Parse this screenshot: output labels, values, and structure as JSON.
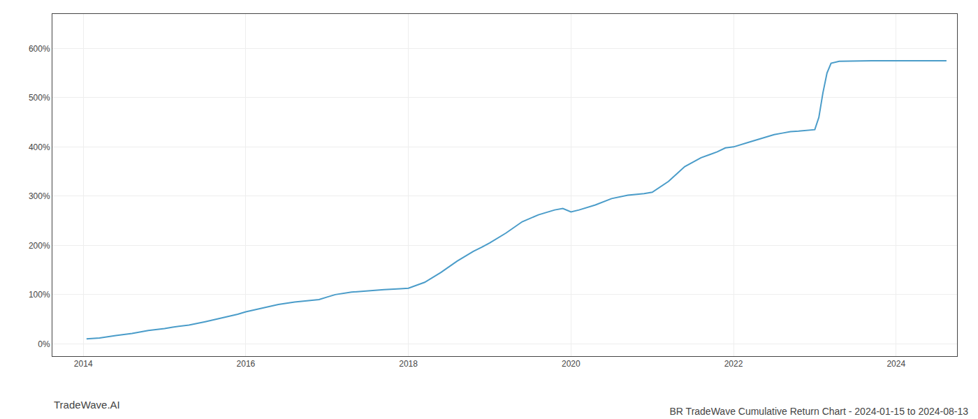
{
  "chart_data": {
    "type": "line",
    "title": "BR TradeWave Cumulative Return Chart - 2024-01-15 to 2024-08-13",
    "annotations": [
      {
        "text": "TradeWave.AI"
      }
    ],
    "color": "#4a9cc9",
    "x": [
      2014.04,
      2014.1,
      2014.2,
      2014.4,
      2014.6,
      2014.8,
      2014.96,
      2015.0,
      2015.1,
      2015.3,
      2015.5,
      2015.7,
      2015.9,
      2016.0,
      2016.2,
      2016.4,
      2016.6,
      2016.8,
      2016.9,
      2017.0,
      2017.1,
      2017.3,
      2017.5,
      2017.7,
      2017.9,
      2018.0,
      2018.2,
      2018.4,
      2018.6,
      2018.8,
      2018.9,
      2019.0,
      2019.2,
      2019.4,
      2019.6,
      2019.8,
      2019.9,
      2020.0,
      2020.1,
      2020.3,
      2020.5,
      2020.7,
      2020.9,
      2021.0,
      2021.2,
      2021.4,
      2021.6,
      2021.8,
      2021.9,
      2022.0,
      2022.2,
      2022.4,
      2022.5,
      2022.6,
      2022.7,
      2022.8,
      2022.9,
      2023.0,
      2023.05,
      2023.1,
      2023.15,
      2023.2,
      2023.3,
      2023.5,
      2023.7,
      2023.9,
      2024.0,
      2024.1,
      2024.2,
      2024.4,
      2024.62
    ],
    "values": [
      10,
      10.5,
      12,
      17,
      21,
      27,
      30,
      31,
      34,
      38,
      45,
      52,
      60,
      65,
      72,
      80,
      85,
      88,
      90,
      95,
      100,
      105,
      108,
      110,
      112,
      113,
      125,
      145,
      168,
      188,
      196,
      205,
      225,
      248,
      262,
      272,
      275,
      268,
      272,
      282,
      295,
      302,
      305,
      308,
      330,
      360,
      378,
      390,
      398,
      400,
      410,
      420,
      425,
      428,
      431,
      432,
      433,
      435,
      460,
      510,
      550,
      570,
      574,
      575,
      575,
      575,
      575,
      575,
      575,
      575,
      575
    ],
    "xlim": [
      2013.62,
      2024.75
    ],
    "ylim": [
      -25,
      670
    ],
    "xticks": [
      2014,
      2016,
      2018,
      2020,
      2022,
      2024
    ],
    "yticks": [
      {
        "value": 0,
        "label": "0%"
      },
      {
        "value": 100,
        "label": "100%"
      },
      {
        "value": 200,
        "label": "200%"
      },
      {
        "value": 300,
        "label": "300%"
      },
      {
        "value": 400,
        "label": "400%"
      },
      {
        "value": 500,
        "label": "500%"
      },
      {
        "value": 600,
        "label": "600%"
      }
    ],
    "grid": true
  }
}
